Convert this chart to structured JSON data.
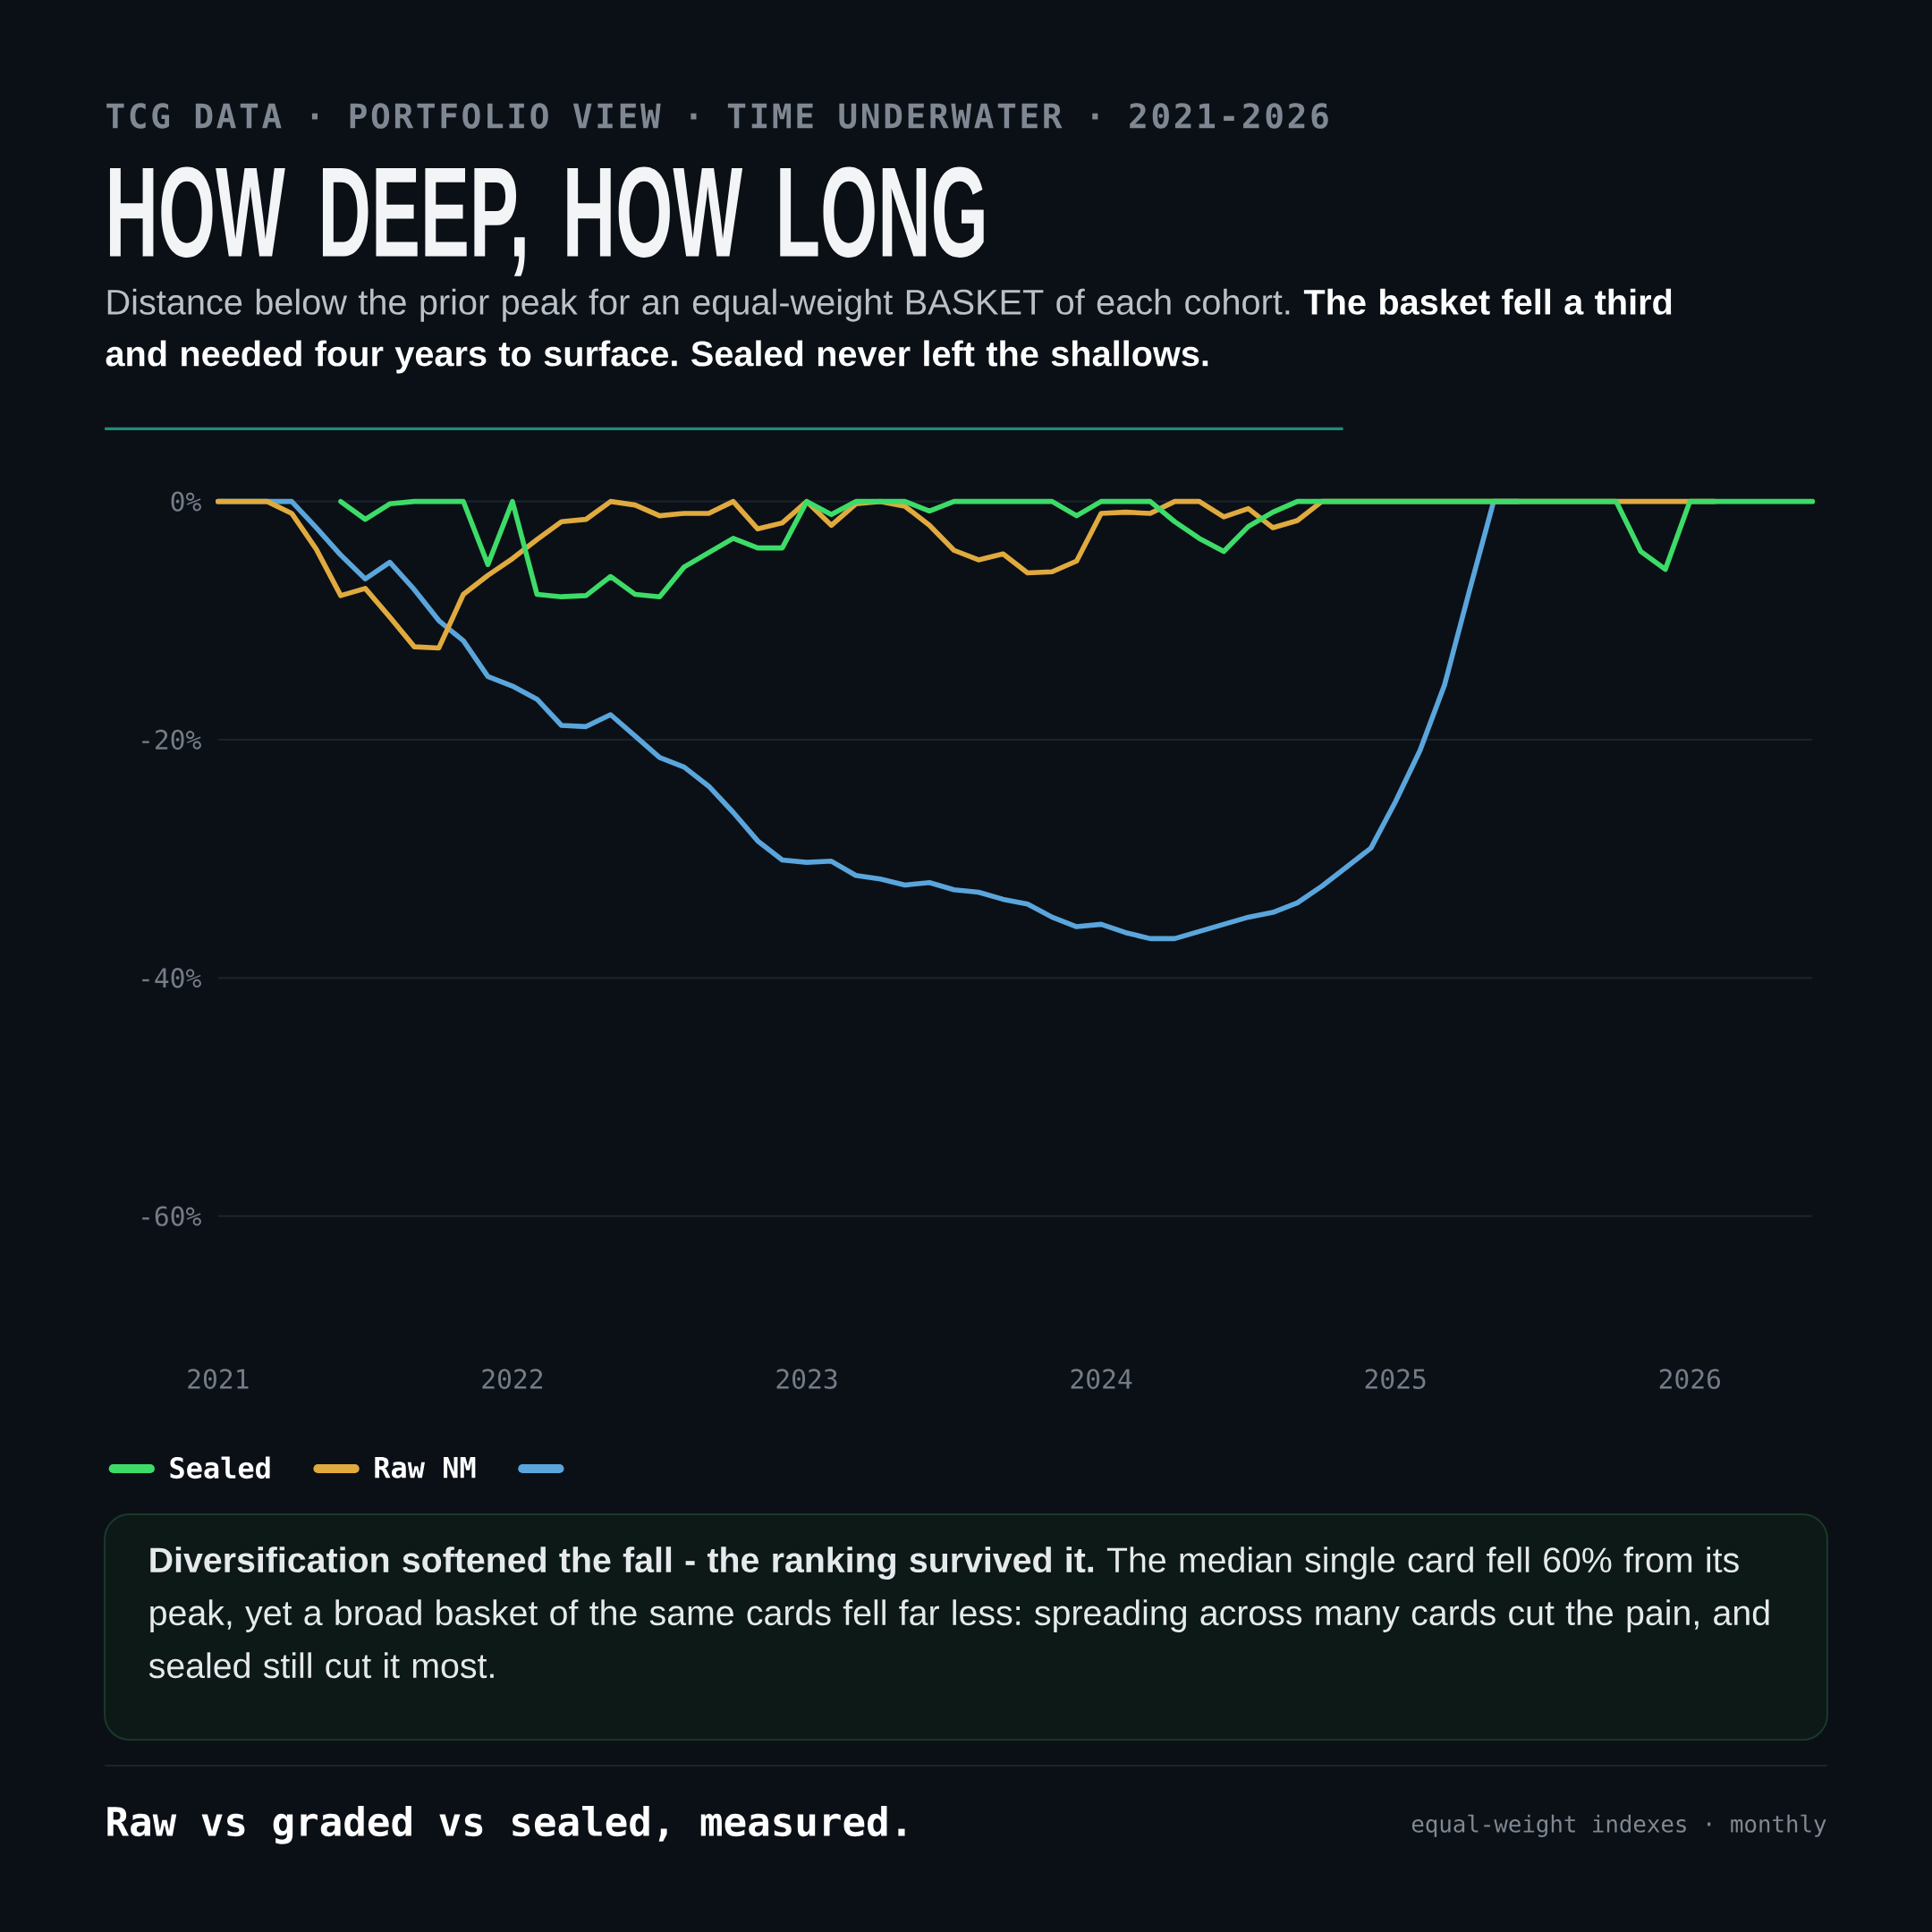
{
  "chart_data": {
    "type": "line",
    "title": "HOW DEEP, HOW LONG",
    "subtitle": "Distance below the prior peak for an equal-weight BASKET of each cohort. **The basket fell a third and needed four years to surface. Sealed never left the shallows.**",
    "annotations": [
      "TCG DATA · PORTFOLIO VIEW · TIME UNDERWATER · 2021-2026",
      "**Diversification softened the fall - the ranking survived it.** The median single card fell 60% from its peak, yet a broad basket of the same cards fell far less: spreading across many cards cut the pain, and sealed still cut it most.",
      "Raw vs graded vs sealed, measured.",
      "equal-weight indexes · monthly"
    ],
    "x": [
      "2021-01",
      "2021-02",
      "2021-03",
      "2021-04",
      "2021-05",
      "2021-06",
      "2021-07",
      "2021-08",
      "2021-09",
      "2021-10",
      "2021-11",
      "2021-12",
      "2022-01",
      "2022-02",
      "2022-03",
      "2022-04",
      "2022-05",
      "2022-06",
      "2022-07",
      "2022-08",
      "2022-09",
      "2022-10",
      "2022-11",
      "2022-12",
      "2023-01",
      "2023-02",
      "2023-03",
      "2023-04",
      "2023-05",
      "2023-06",
      "2023-07",
      "2023-08",
      "2023-09",
      "2023-10",
      "2023-11",
      "2023-12",
      "2024-01",
      "2024-02",
      "2024-03",
      "2024-04",
      "2024-05",
      "2024-06",
      "2024-07",
      "2024-08",
      "2024-09",
      "2024-10",
      "2024-11",
      "2024-12",
      "2025-01",
      "2025-02",
      "2025-03",
      "2025-04",
      "2025-05",
      "2025-06",
      "2025-07",
      "2025-08",
      "2025-09",
      "2025-10",
      "2025-11",
      "2025-12",
      "2026-01",
      "2026-02",
      "2026-03",
      "2026-04",
      "2026-05",
      "2026-06"
    ],
    "series": [
      {
        "name": "Sealed",
        "color": "#3ddc68",
        "values": [
          null,
          null,
          null,
          null,
          null,
          0,
          -1.5,
          -0.2,
          0,
          0,
          0,
          -5.3,
          0,
          -7.8,
          -8.0,
          -7.9,
          -6.3,
          -7.8,
          -8.0,
          -5.5,
          -4.3,
          -3.1,
          -3.9,
          -3.9,
          0,
          -1.1,
          0,
          0,
          0,
          -0.8,
          0,
          0,
          0,
          0,
          0,
          -1.2,
          0,
          0,
          0,
          -1.7,
          -3.1,
          -4.2,
          -2.1,
          -0.9,
          0,
          0,
          0,
          0,
          0,
          0,
          0,
          0,
          0,
          0,
          0,
          0,
          0,
          0,
          -4.2,
          -5.7,
          0,
          0,
          0,
          0,
          0,
          0
        ]
      },
      {
        "name": "Raw NM",
        "color": "#e0aa3e",
        "values": [
          0,
          0,
          0,
          -1.0,
          -4.0,
          -7.9,
          -7.3,
          -9.7,
          -12.2,
          -12.3,
          -7.8,
          -6.2,
          -4.8,
          -3.2,
          -1.7,
          -1.5,
          0,
          -0.3,
          -1.2,
          -1.0,
          -1.0,
          0,
          -2.3,
          -1.8,
          0,
          -2.0,
          -0.2,
          0,
          -0.4,
          -2.0,
          -4.1,
          -4.9,
          -4.4,
          -6.0,
          -5.9,
          -5.0,
          -1.0,
          -0.9,
          -1.0,
          0,
          0,
          -1.3,
          -0.6,
          -2.2,
          -1.6,
          0,
          0,
          0,
          0,
          0,
          0,
          0,
          0,
          0,
          0,
          0,
          0,
          0,
          0,
          0,
          0,
          0,
          null,
          null,
          null,
          null
        ]
      },
      {
        "color": "#5aa6dc",
        "values": [
          0,
          0,
          0,
          0,
          -2.2,
          -4.5,
          -6.5,
          -5.1,
          -7.4,
          -10.0,
          -11.7,
          -14.7,
          -15.5,
          -16.6,
          -18.8,
          -18.9,
          -17.9,
          -19.7,
          -21.5,
          -22.3,
          -23.9,
          -26.1,
          -28.5,
          -30.1,
          -30.3,
          -30.2,
          -31.4,
          -31.7,
          -32.2,
          -32.0,
          -32.6,
          -32.8,
          -33.4,
          -33.8,
          -34.9,
          -35.7,
          -35.5,
          -36.2,
          -36.7,
          -36.7,
          -36.1,
          -35.5,
          -34.9,
          -34.5,
          -33.7,
          -32.3,
          -30.7,
          -29.1,
          -25.2,
          -20.9,
          -15.4,
          -7.6,
          0,
          0,
          null,
          null,
          null,
          null,
          null,
          null,
          null,
          null,
          null,
          null,
          null,
          null
        ]
      }
    ],
    "xlim": [
      "2021-01",
      "2026-06"
    ],
    "xticks": [
      "2021",
      "2022",
      "2023",
      "2024",
      "2025",
      "2026"
    ],
    "ylim": [
      -60,
      0
    ],
    "yticks": [
      {
        "value": 0,
        "label": "0%"
      },
      {
        "value": -20,
        "label": "-20%"
      },
      {
        "value": -40,
        "label": "-40%"
      },
      {
        "value": -60,
        "label": "-60%"
      }
    ],
    "grid": "y",
    "legend": "bottom left"
  }
}
